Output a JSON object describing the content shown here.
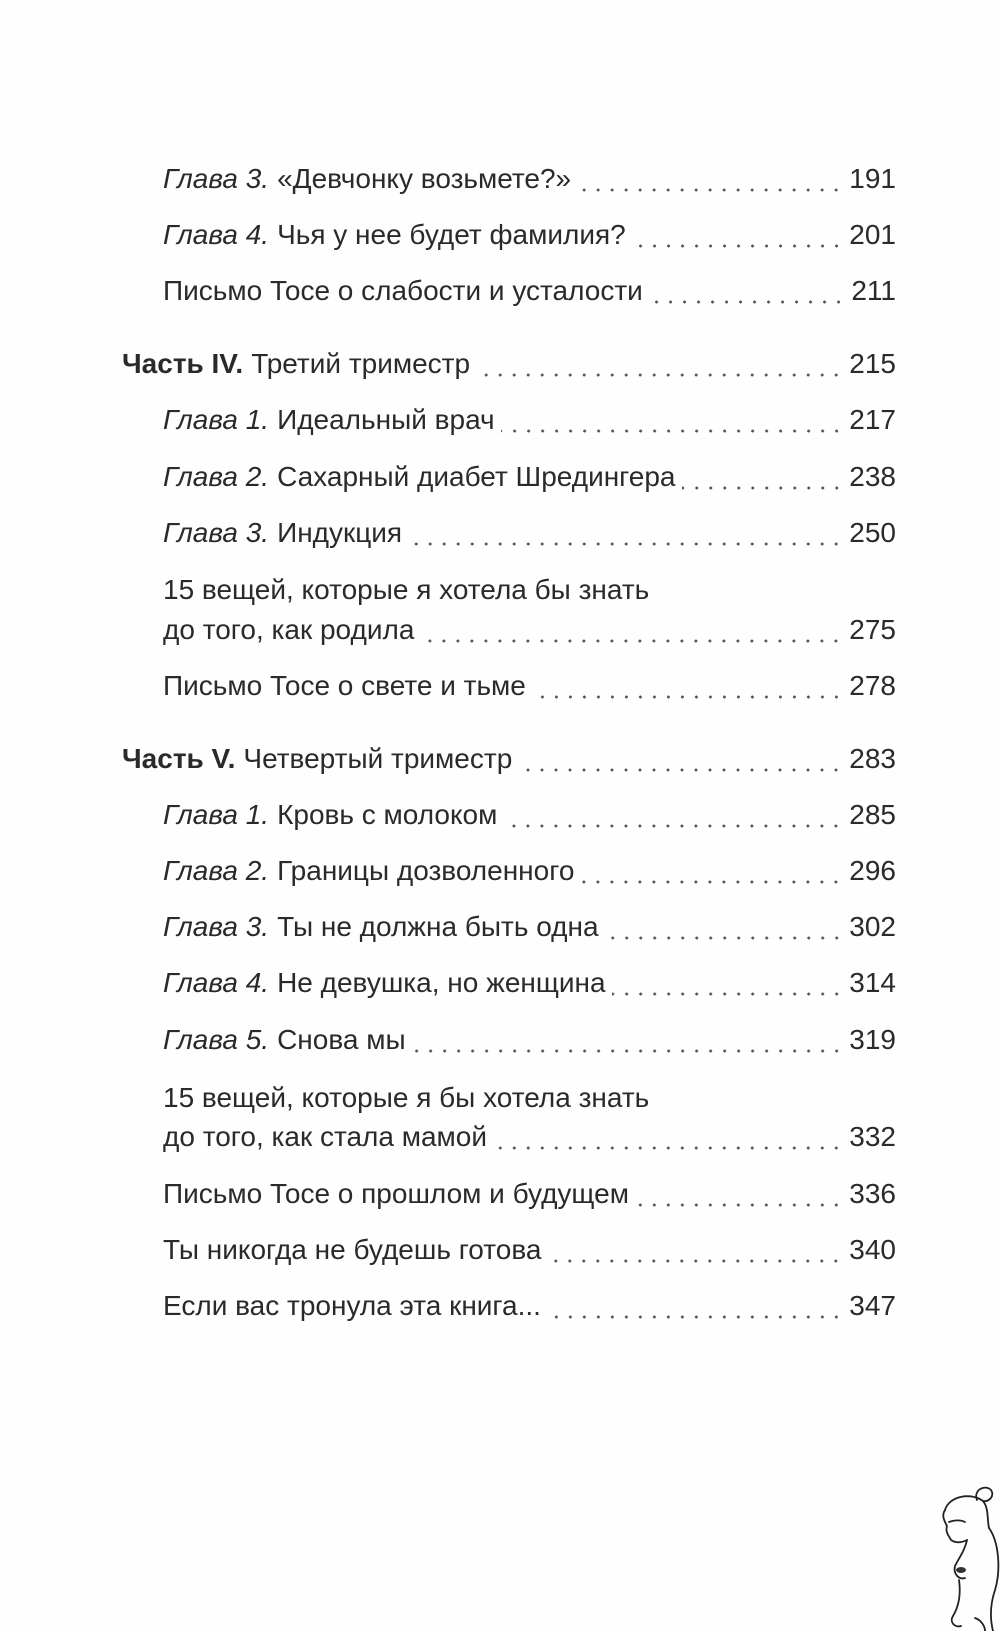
{
  "toc": [
    {
      "prefix": "Глава 3.",
      "title": "«Девчонку возьмете?»",
      "page": "191"
    },
    {
      "prefix": "Глава 4.",
      "title": "Чья у нее будет фамилия?",
      "page": "201"
    },
    {
      "title": "Письмо Тосе о слабости и усталости",
      "page": "211"
    },
    {
      "prefix": "Часть IV.",
      "title": "Третий триместр",
      "page": "215"
    },
    {
      "prefix": "Глава 1.",
      "title": "Идеальный врач",
      "page": "217"
    },
    {
      "prefix": "Глава 2.",
      "title": "Сахарный диабет Шредингера",
      "page": "238"
    },
    {
      "prefix": "Глава 3.",
      "title": "Индукция",
      "page": "250"
    },
    {
      "title_line1": "15 вещей, которые я хотела бы знать",
      "title": "до того, как родила",
      "page": "275"
    },
    {
      "title": "Письмо Тосе о свете и тьме",
      "page": "278"
    },
    {
      "prefix": "Часть V.",
      "title": "Четвертый триместр",
      "page": "283"
    },
    {
      "prefix": "Глава 1.",
      "title": "Кровь с молоком",
      "page": "285"
    },
    {
      "prefix": "Глава 2.",
      "title": "Границы дозволенного",
      "page": "296"
    },
    {
      "prefix": "Глава 3.",
      "title": "Ты не должна быть одна",
      "page": "302"
    },
    {
      "prefix": "Глава 4.",
      "title": "Не девушка, но женщина",
      "page": "314"
    },
    {
      "prefix": "Глава 5.",
      "title": "Снова мы",
      "page": "319"
    },
    {
      "title_line1": "15 вещей, которые я бы хотела знать",
      "title": "до того, как стала мамой",
      "page": "332"
    },
    {
      "title": "Письмо Тосе о прошлом и будущем",
      "page": "336"
    },
    {
      "title": "Ты никогда не будешь готова",
      "page": "340"
    },
    {
      "title": "Если вас тронула эта книга...",
      "page": "347"
    }
  ],
  "illustration": "pregnant-woman-line-drawing"
}
